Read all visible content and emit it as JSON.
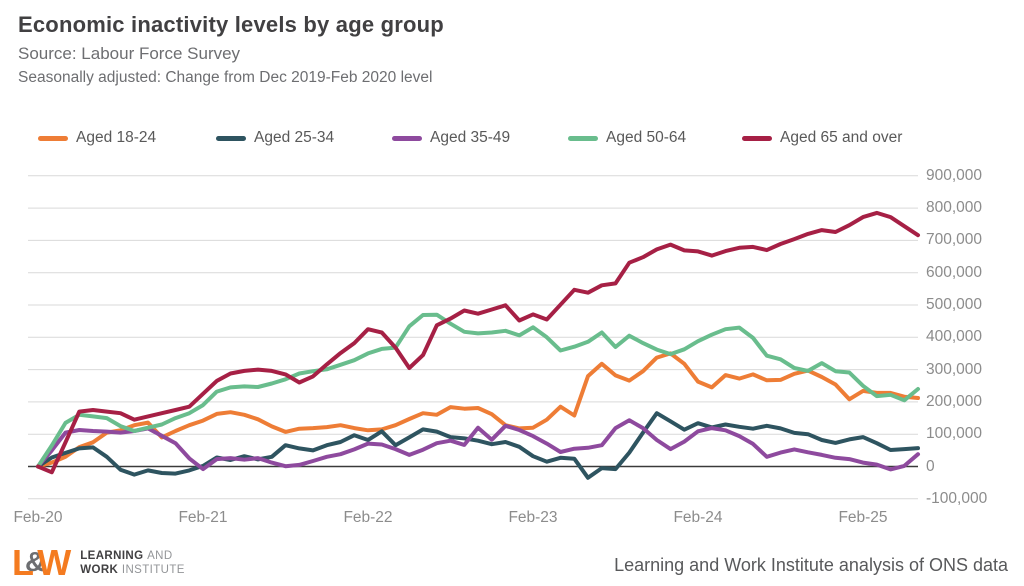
{
  "header": {
    "title": "Economic inactivity levels by age group",
    "source": "Source: Labour Force Survey",
    "subtitle": "Seasonally adjusted: Change from Dec 2019-Feb 2020 level"
  },
  "legend": [
    {
      "label": "Aged 18-24",
      "color": "#EE7D36"
    },
    {
      "label": "Aged 25-34",
      "color": "#2E5460"
    },
    {
      "label": "Aged 35-49",
      "color": "#8E4A9E"
    },
    {
      "label": "Aged 50-64",
      "color": "#69BD8D"
    },
    {
      "label": "Aged 65 and over",
      "color": "#A62045"
    }
  ],
  "chart_data": {
    "type": "line",
    "title": "Economic inactivity levels by age group",
    "subtitle": "Seasonally adjusted: Change from Dec 2019-Feb 2020 level",
    "x_unit": "rolling 3-month period, monthly",
    "x_start": "Feb-20",
    "x_end": "Jun-25",
    "n_points": 65,
    "x_tick_labels": [
      "Feb-20",
      "Feb-21",
      "Feb-22",
      "Feb-23",
      "Feb-24",
      "Feb-25"
    ],
    "x_tick_positions": [
      0,
      12,
      24,
      36,
      48,
      60
    ],
    "ylim": [
      -100000,
      900000
    ],
    "y_tick_interval": 100000,
    "y_tick_labels": [
      "900,000",
      "800,000",
      "700,000",
      "600,000",
      "500,000",
      "400,000",
      "300,000",
      "200,000",
      "100,000",
      "0",
      "-100,000"
    ],
    "grid": true,
    "legend_position": "top",
    "series": [
      {
        "name": "Aged 18-24",
        "color": "#EE7D36",
        "values": [
          0,
          12000,
          30000,
          60000,
          75000,
          105000,
          112000,
          128000,
          136000,
          90000,
          110000,
          128000,
          142000,
          163000,
          168000,
          160000,
          146000,
          124000,
          107000,
          117000,
          119000,
          122000,
          128000,
          119000,
          112000,
          115000,
          128000,
          147000,
          165000,
          160000,
          184000,
          179000,
          181000,
          162000,
          128000,
          118000,
          120000,
          145000,
          185000,
          158000,
          280000,
          318000,
          282000,
          266000,
          295000,
          337000,
          350000,
          318000,
          263000,
          245000,
          283000,
          272000,
          285000,
          267000,
          268000,
          287000,
          297000,
          277000,
          254000,
          208000,
          234000,
          228000,
          228000,
          216000,
          212000
        ]
      },
      {
        "name": "Aged 25-34",
        "color": "#2E5460",
        "values": [
          0,
          28000,
          42000,
          56000,
          59000,
          30000,
          -10000,
          -25000,
          -12000,
          -20000,
          -22000,
          -12000,
          2000,
          28000,
          20000,
          32000,
          22000,
          30000,
          66000,
          56000,
          50000,
          66000,
          76000,
          97000,
          82000,
          109000,
          66000,
          90000,
          115000,
          108000,
          91000,
          87000,
          80000,
          69000,
          76000,
          61000,
          32000,
          15000,
          27000,
          24000,
          -35000,
          -5000,
          -8000,
          43000,
          105000,
          165000,
          140000,
          114000,
          134000,
          121000,
          130000,
          123000,
          117000,
          126000,
          118000,
          104000,
          100000,
          82000,
          73000,
          84000,
          91000,
          72000,
          51000,
          54000,
          57000
        ]
      },
      {
        "name": "Aged 35-49",
        "color": "#8E4A9E",
        "values": [
          0,
          50000,
          105000,
          113000,
          110000,
          108000,
          105000,
          110000,
          118000,
          95000,
          72000,
          25000,
          -8000,
          23000,
          26000,
          21000,
          26000,
          12000,
          1000,
          5000,
          17000,
          30000,
          38000,
          53000,
          71000,
          68000,
          54000,
          36000,
          52000,
          72000,
          80000,
          67000,
          120000,
          83000,
          126000,
          113000,
          94000,
          71000,
          45000,
          55000,
          58000,
          66000,
          119000,
          143000,
          119000,
          82000,
          54000,
          77000,
          109000,
          119000,
          112000,
          94000,
          70000,
          30000,
          43000,
          53000,
          44000,
          36000,
          27000,
          23000,
          12000,
          6000,
          -9000,
          2000,
          38000
        ]
      },
      {
        "name": "Aged 50-64",
        "color": "#69BD8D",
        "values": [
          0,
          65000,
          135000,
          160000,
          155000,
          150000,
          125000,
          110000,
          120000,
          130000,
          150000,
          165000,
          190000,
          232000,
          245000,
          248000,
          246000,
          257000,
          270000,
          288000,
          295000,
          301000,
          315000,
          329000,
          350000,
          364000,
          368000,
          434000,
          469000,
          470000,
          442000,
          417000,
          412000,
          415000,
          420000,
          406000,
          431000,
          400000,
          359000,
          371000,
          386000,
          415000,
          370000,
          405000,
          382000,
          362000,
          348000,
          363000,
          388000,
          408000,
          425000,
          430000,
          398000,
          343000,
          332000,
          305000,
          296000,
          320000,
          295000,
          291000,
          250000,
          218000,
          222000,
          205000,
          240000
        ]
      },
      {
        "name": "Aged 65 and over",
        "color": "#A62045",
        "values": [
          0,
          -18000,
          75000,
          170000,
          175000,
          170000,
          165000,
          145000,
          155000,
          165000,
          175000,
          185000,
          225000,
          265000,
          288000,
          296000,
          300000,
          296000,
          285000,
          260000,
          279000,
          316000,
          351000,
          382000,
          425000,
          415000,
          368000,
          305000,
          345000,
          437000,
          458000,
          483000,
          473000,
          486000,
          499000,
          452000,
          471000,
          455000,
          501000,
          547000,
          538000,
          561000,
          567000,
          631000,
          648000,
          672000,
          687000,
          669000,
          666000,
          653000,
          667000,
          677000,
          680000,
          670000,
          689000,
          704000,
          720000,
          732000,
          726000,
          747000,
          772000,
          785000,
          772000,
          744000,
          716000
        ]
      }
    ]
  },
  "footer": {
    "logo": {
      "l": "L",
      "amp": "&",
      "w": "W",
      "line1_bold": "LEARNING",
      "line1_light": "AND",
      "line2_bold": "WORK",
      "line2_light": "INSTITUTE"
    },
    "attribution": "Learning and Work Institute analysis of ONS data"
  }
}
